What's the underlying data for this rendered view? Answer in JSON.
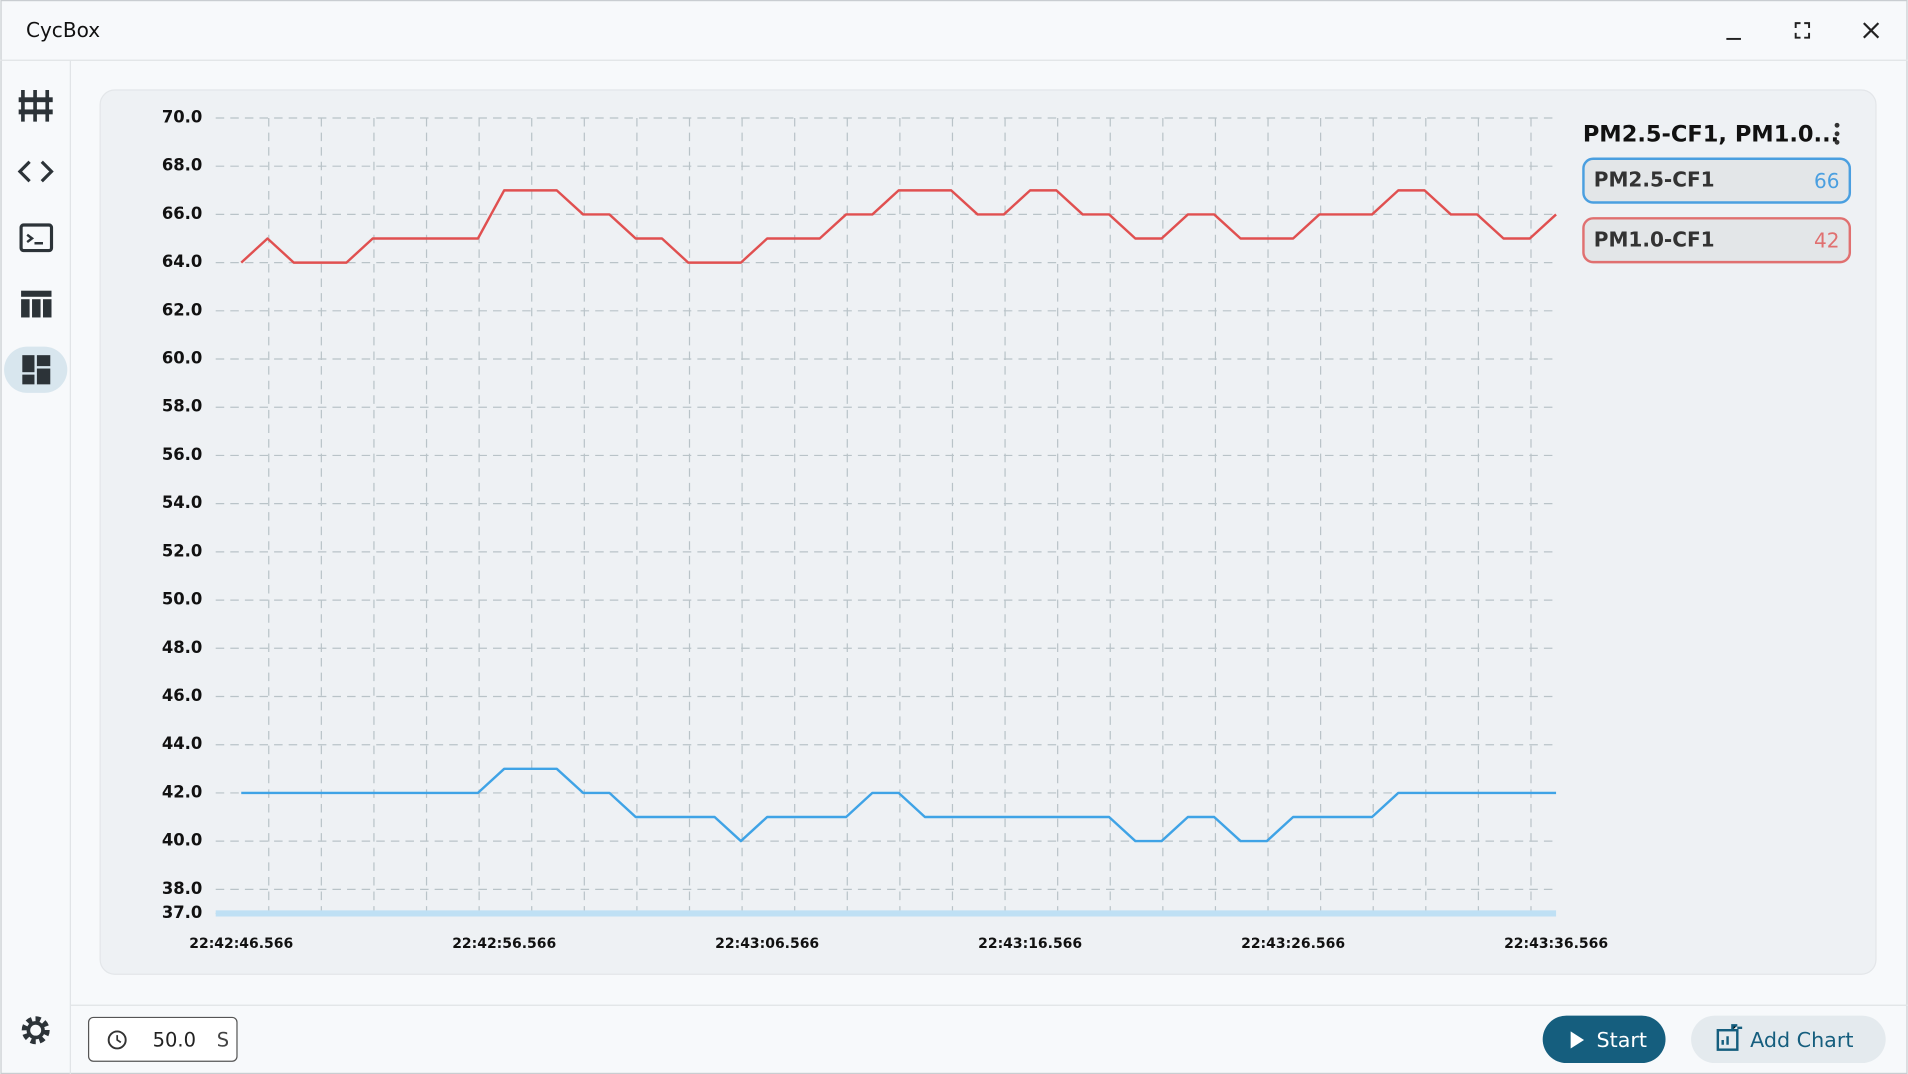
{
  "app": {
    "title": "CycBox"
  },
  "toolbar": {
    "duration": "50.0",
    "duration_unit": "S",
    "start": "Start",
    "add_chart": "Add Chart"
  },
  "chart_data": {
    "type": "line",
    "title": "PM2.5-CF1, PM1.0...",
    "x": [
      "22:42:46.566",
      "22:42:47.566",
      "22:42:48.566",
      "22:42:49.566",
      "22:42:50.566",
      "22:42:51.566",
      "22:42:52.566",
      "22:42:53.566",
      "22:42:54.566",
      "22:42:55.566",
      "22:42:56.566",
      "22:42:57.566",
      "22:42:58.566",
      "22:42:59.566",
      "22:43:00.566",
      "22:43:01.566",
      "22:43:02.566",
      "22:43:03.566",
      "22:43:04.566",
      "22:43:05.566",
      "22:43:06.566",
      "22:43:07.566",
      "22:43:08.566",
      "22:43:09.566",
      "22:43:10.566",
      "22:43:11.566",
      "22:43:12.566",
      "22:43:13.566",
      "22:43:14.566",
      "22:43:15.566",
      "22:43:16.566",
      "22:43:17.566",
      "22:43:18.566",
      "22:43:19.566",
      "22:43:20.566",
      "22:43:21.566",
      "22:43:22.566",
      "22:43:23.566",
      "22:43:24.566",
      "22:43:25.566",
      "22:43:26.566",
      "22:43:27.566",
      "22:43:28.566",
      "22:43:29.566",
      "22:43:30.566",
      "22:43:31.566",
      "22:43:32.566",
      "22:43:33.566",
      "22:43:34.566",
      "22:43:35.566",
      "22:43:36.566"
    ],
    "xticks": [
      "22:42:46.566",
      "22:42:56.566",
      "22:43:06.566",
      "22:43:16.566",
      "22:43:26.566",
      "22:43:36.566"
    ],
    "series": [
      {
        "name": "PM2.5-CF1",
        "color": "#e05050",
        "legend_color": "#4a9fe0",
        "values": [
          64,
          65,
          64,
          64,
          64,
          65,
          65,
          65,
          65,
          65,
          67,
          67,
          67,
          66,
          66,
          65,
          65,
          64,
          64,
          64,
          65,
          65,
          65,
          66,
          66,
          67,
          67,
          67,
          66,
          66,
          67,
          67,
          66,
          66,
          65,
          65,
          66,
          66,
          65,
          65,
          65,
          66,
          66,
          66,
          67,
          67,
          66,
          66,
          65,
          65,
          66
        ]
      },
      {
        "name": "PM1.0-CF1",
        "color": "#3fa3e6",
        "legend_color": "#e07070",
        "values": [
          42,
          42,
          42,
          42,
          42,
          42,
          42,
          42,
          42,
          42,
          43,
          43,
          43,
          42,
          42,
          41,
          41,
          41,
          41,
          40,
          41,
          41,
          41,
          41,
          42,
          42,
          41,
          41,
          41,
          41,
          41,
          41,
          41,
          41,
          40,
          40,
          41,
          41,
          40,
          40,
          41,
          41,
          41,
          41,
          42,
          42,
          42,
          42,
          42,
          42,
          42
        ]
      }
    ],
    "ylim": [
      37,
      70
    ],
    "yticks": [
      {
        "value": 37,
        "label": "37.0"
      },
      {
        "value": 38,
        "label": "38.0"
      },
      {
        "value": 40,
        "label": "40.0"
      },
      {
        "value": 42,
        "label": "42.0"
      },
      {
        "value": 44,
        "label": "44.0"
      },
      {
        "value": 46,
        "label": "46.0"
      },
      {
        "value": 48,
        "label": "48.0"
      },
      {
        "value": 50,
        "label": "50.0"
      },
      {
        "value": 52,
        "label": "52.0"
      },
      {
        "value": 54,
        "label": "54.0"
      },
      {
        "value": 56,
        "label": "56.0"
      },
      {
        "value": 58,
        "label": "58.0"
      },
      {
        "value": 60,
        "label": "60.0"
      },
      {
        "value": 62,
        "label": "62.0"
      },
      {
        "value": 64,
        "label": "64.0"
      },
      {
        "value": 66,
        "label": "66.0"
      },
      {
        "value": 68,
        "label": "68.0"
      },
      {
        "value": 70,
        "label": "70.0"
      }
    ],
    "grid": true
  }
}
